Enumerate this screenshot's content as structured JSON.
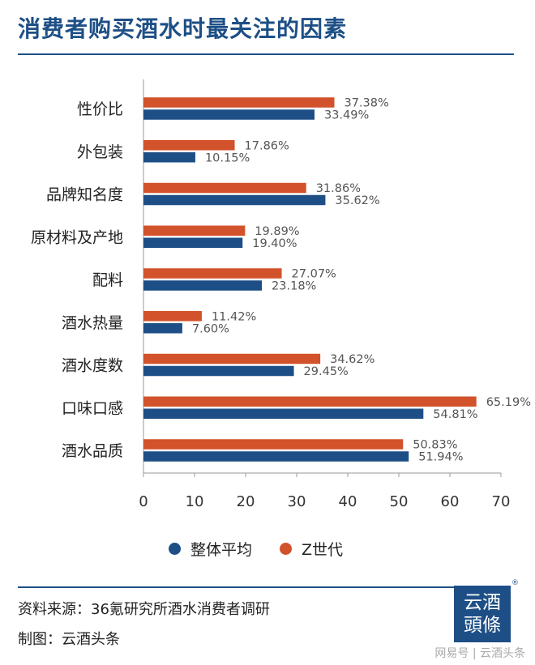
{
  "header": {
    "title": "消费者购买酒水时最关注的因素"
  },
  "chart_data": {
    "type": "bar",
    "orientation": "horizontal",
    "categories": [
      "性价比",
      "外包装",
      "品牌知名度",
      "原材料及产地",
      "配料",
      "酒水热量",
      "酒水度数",
      "口味口感",
      "酒水品质"
    ],
    "series": [
      {
        "name": "Z世代",
        "color": "#d2522b",
        "values": [
          37.38,
          17.86,
          31.86,
          19.89,
          27.07,
          11.42,
          34.62,
          65.19,
          50.83
        ]
      },
      {
        "name": "整体平均",
        "color": "#1d4f86",
        "values": [
          33.49,
          10.15,
          35.62,
          19.4,
          23.18,
          7.6,
          29.45,
          54.81,
          51.94
        ]
      }
    ],
    "value_suffix": "%",
    "xlim": [
      0,
      70
    ],
    "xticks": [
      0,
      10,
      20,
      30,
      40,
      50,
      60,
      70
    ],
    "grid": false,
    "legend": {
      "placement": "bottom",
      "order": [
        "整体平均",
        "Z世代"
      ]
    }
  },
  "legend": {
    "items": [
      {
        "label": "整体平均",
        "color": "#1d4f86"
      },
      {
        "label": "Z世代",
        "color": "#d2522b"
      }
    ]
  },
  "footer": {
    "source": "资料来源：36氪研究所酒水消费者调研",
    "credit": "制图：云酒头条",
    "logo_line1": "云酒",
    "logo_line2": "頭條",
    "logo_mark": "®",
    "watermark": "网易号 | 云酒头条"
  }
}
